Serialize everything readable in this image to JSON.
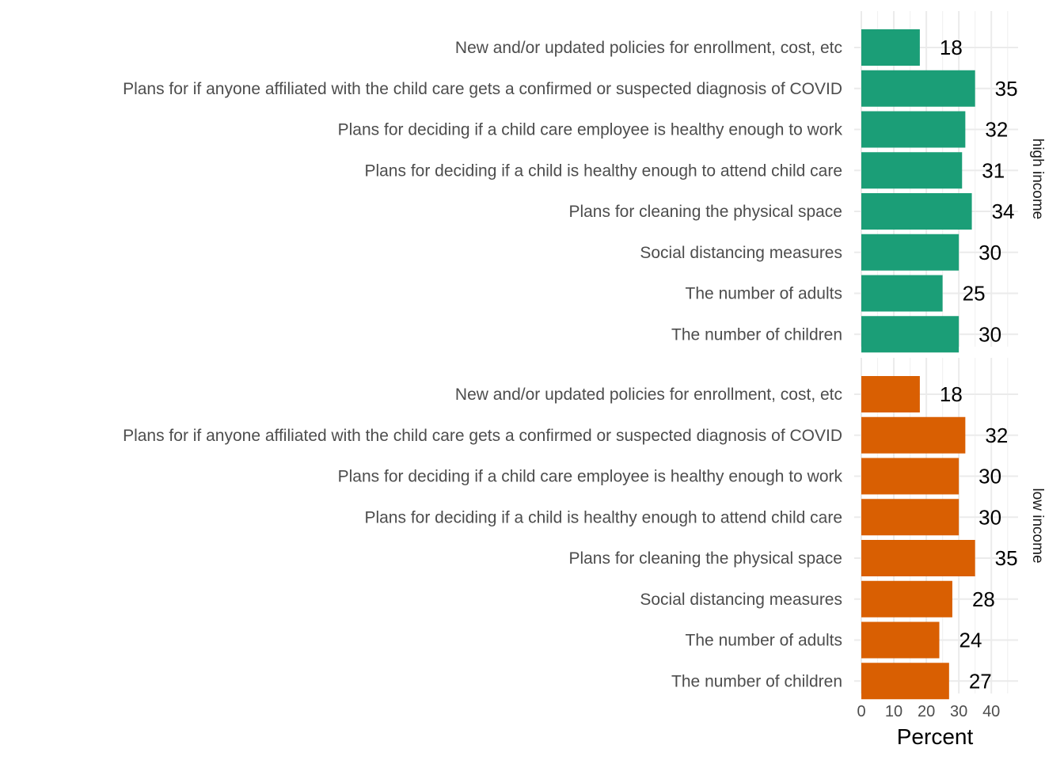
{
  "chart_data": {
    "type": "bar",
    "orientation": "horizontal",
    "xlabel": "Percent",
    "xlim": [
      0,
      45
    ],
    "xticks": [
      0,
      10,
      20,
      30,
      40
    ],
    "grid": true,
    "categories": [
      "New and/or updated policies for enrollment, cost, etc",
      "Plans for if anyone affiliated with the child care gets a confirmed or suspected diagnosis of COVID",
      "Plans for deciding if a child care employee is healthy enough to work",
      "Plans for deciding if a child is healthy enough to attend child care",
      "Plans for cleaning the physical space",
      "Social distancing measures",
      "The number of adults",
      "The number of children"
    ],
    "panels": [
      {
        "name": "high income",
        "color": "#1b9e77",
        "values": [
          18,
          35,
          32,
          31,
          34,
          30,
          25,
          30
        ]
      },
      {
        "name": "low income",
        "color": "#d95f02",
        "values": [
          18,
          32,
          30,
          30,
          35,
          28,
          24,
          27
        ]
      }
    ]
  }
}
